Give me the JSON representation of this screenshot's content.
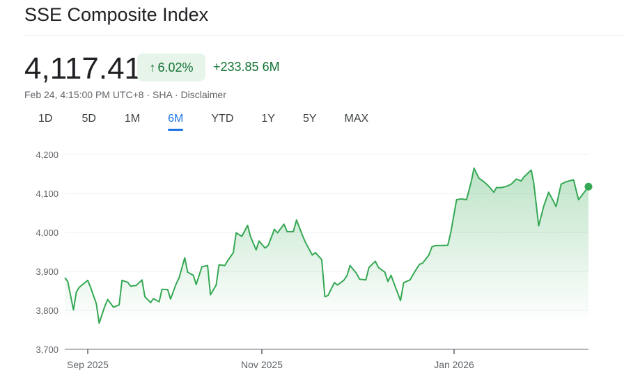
{
  "header": {
    "title": "SSE Composite Index",
    "price": "4,117.41",
    "change_percent": "6.02%",
    "change_direction_icon": "arrow-up-icon",
    "change_abs": "+233.85",
    "change_period": "6M",
    "timestamp": "Feb 24, 4:15:00 PM UTC+8",
    "separator": "·",
    "exchange": "SHA",
    "disclaimer": "Disclaimer"
  },
  "tabs": [
    {
      "label": "1D",
      "active": false
    },
    {
      "label": "5D",
      "active": false
    },
    {
      "label": "1M",
      "active": false
    },
    {
      "label": "6M",
      "active": true
    },
    {
      "label": "YTD",
      "active": false
    },
    {
      "label": "1Y",
      "active": false
    },
    {
      "label": "5Y",
      "active": false
    },
    {
      "label": "MAX",
      "active": false
    }
  ],
  "colors": {
    "positive": "#137333",
    "line": "#34a853",
    "accent": "#1a73e8"
  },
  "chart_data": {
    "type": "area",
    "title": "",
    "xlabel": "",
    "ylabel": "",
    "ylim": [
      3700,
      4200
    ],
    "y_ticks": [
      {
        "value": 4200,
        "label": "4,200"
      },
      {
        "value": 4100,
        "label": "4,100"
      },
      {
        "value": 4000,
        "label": "4,000"
      },
      {
        "value": 3900,
        "label": "3,900"
      },
      {
        "value": 3800,
        "label": "3,800"
      },
      {
        "value": 3700,
        "label": "3,700"
      }
    ],
    "x_ticks": [
      {
        "date": "2025-09-01",
        "label": "Sep 2025"
      },
      {
        "date": "2025-11-01",
        "label": "Nov 2025"
      },
      {
        "date": "2026-01-01",
        "label": "Jan 2026"
      }
    ],
    "grid": true,
    "series": [
      {
        "points": [
          [
            "2025-08-24",
            3884
          ],
          [
            "2025-08-25",
            3874
          ],
          [
            "2025-08-27",
            3801
          ],
          [
            "2025-08-28",
            3847
          ],
          [
            "2025-08-29",
            3859
          ],
          [
            "2025-09-01",
            3877
          ],
          [
            "2025-09-02",
            3859
          ],
          [
            "2025-09-04",
            3817
          ],
          [
            "2025-09-05",
            3767
          ],
          [
            "2025-09-07",
            3811
          ],
          [
            "2025-09-08",
            3828
          ],
          [
            "2025-09-10",
            3808
          ],
          [
            "2025-09-12",
            3814
          ],
          [
            "2025-09-13",
            3877
          ],
          [
            "2025-09-15",
            3872
          ],
          [
            "2025-09-16",
            3862
          ],
          [
            "2025-09-18",
            3864
          ],
          [
            "2025-09-20",
            3878
          ],
          [
            "2025-09-21",
            3835
          ],
          [
            "2025-09-23",
            3820
          ],
          [
            "2025-09-24",
            3830
          ],
          [
            "2025-09-26",
            3822
          ],
          [
            "2025-09-27",
            3854
          ],
          [
            "2025-09-29",
            3853
          ],
          [
            "2025-09-30",
            3829
          ],
          [
            "2025-10-02",
            3868
          ],
          [
            "2025-10-03",
            3883
          ],
          [
            "2025-10-05",
            3935
          ],
          [
            "2025-10-06",
            3898
          ],
          [
            "2025-10-08",
            3890
          ],
          [
            "2025-10-09",
            3866
          ],
          [
            "2025-10-11",
            3912
          ],
          [
            "2025-10-13",
            3915
          ],
          [
            "2025-10-14",
            3840
          ],
          [
            "2025-10-16",
            3865
          ],
          [
            "2025-10-17",
            3917
          ],
          [
            "2025-10-19",
            3915
          ],
          [
            "2025-10-20",
            3927
          ],
          [
            "2025-10-22",
            3948
          ],
          [
            "2025-10-23",
            3999
          ],
          [
            "2025-10-25",
            3990
          ],
          [
            "2025-10-27",
            4018
          ],
          [
            "2025-10-28",
            3990
          ],
          [
            "2025-10-30",
            3955
          ],
          [
            "2025-10-31",
            3978
          ],
          [
            "2025-11-02",
            3960
          ],
          [
            "2025-11-03",
            3966
          ],
          [
            "2025-11-05",
            4008
          ],
          [
            "2025-11-06",
            3999
          ],
          [
            "2025-11-08",
            4021
          ],
          [
            "2025-11-09",
            4002
          ],
          [
            "2025-11-11",
            4002
          ],
          [
            "2025-11-12",
            4032
          ],
          [
            "2025-11-14",
            3990
          ],
          [
            "2025-11-15",
            3972
          ],
          [
            "2025-11-17",
            3942
          ],
          [
            "2025-11-18",
            3948
          ],
          [
            "2025-11-20",
            3930
          ],
          [
            "2025-11-21",
            3835
          ],
          [
            "2025-11-22",
            3838
          ],
          [
            "2025-11-24",
            3871
          ],
          [
            "2025-11-25",
            3865
          ],
          [
            "2025-11-27",
            3877
          ],
          [
            "2025-11-28",
            3889
          ],
          [
            "2025-11-29",
            3915
          ],
          [
            "2025-12-01",
            3895
          ],
          [
            "2025-12-02",
            3880
          ],
          [
            "2025-12-04",
            3878
          ],
          [
            "2025-12-05",
            3910
          ],
          [
            "2025-12-07",
            3926
          ],
          [
            "2025-12-08",
            3910
          ],
          [
            "2025-12-10",
            3898
          ],
          [
            "2025-12-11",
            3874
          ],
          [
            "2025-12-12",
            3890
          ],
          [
            "2025-12-13",
            3868
          ],
          [
            "2025-12-15",
            3825
          ],
          [
            "2025-12-16",
            3871
          ],
          [
            "2025-12-18",
            3878
          ],
          [
            "2025-12-19",
            3892
          ],
          [
            "2025-12-21",
            3918
          ],
          [
            "2025-12-22",
            3921
          ],
          [
            "2025-12-24",
            3942
          ],
          [
            "2025-12-25",
            3963
          ],
          [
            "2025-12-26",
            3966
          ],
          [
            "2025-12-30",
            3967
          ],
          [
            "2025-12-31",
            4002
          ],
          [
            "2026-01-02",
            4084
          ],
          [
            "2026-01-04",
            4086
          ],
          [
            "2026-01-06",
            4084
          ],
          [
            "2026-01-08",
            4133
          ],
          [
            "2026-01-09",
            4165
          ],
          [
            "2026-01-11",
            4139
          ],
          [
            "2026-01-13",
            4130
          ],
          [
            "2026-01-15",
            4118
          ],
          [
            "2026-01-17",
            4103
          ],
          [
            "2026-01-18",
            4115
          ],
          [
            "2026-01-20",
            4115
          ],
          [
            "2026-01-22",
            4118
          ],
          [
            "2026-01-24",
            4124
          ],
          [
            "2026-01-26",
            4137
          ],
          [
            "2026-01-28",
            4132
          ],
          [
            "2026-01-29",
            4142
          ],
          [
            "2026-02-01",
            4160
          ],
          [
            "2026-02-02",
            4127
          ],
          [
            "2026-02-04",
            4017
          ],
          [
            "2026-02-06",
            4067
          ],
          [
            "2026-02-08",
            4103
          ],
          [
            "2026-02-10",
            4079
          ],
          [
            "2026-02-11",
            4066
          ],
          [
            "2026-02-13",
            4124
          ],
          [
            "2026-02-15",
            4130
          ],
          [
            "2026-02-18",
            4135
          ],
          [
            "2026-02-20",
            4084
          ],
          [
            "2026-02-24",
            4117.41
          ]
        ]
      }
    ]
  }
}
